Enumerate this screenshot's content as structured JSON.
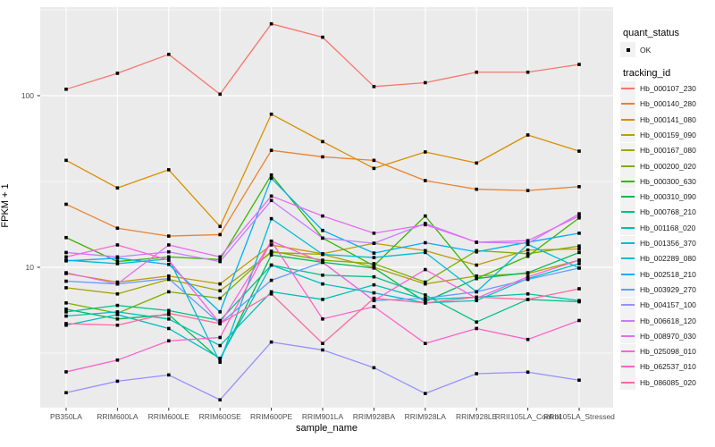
{
  "chart_data": {
    "type": "line",
    "title": "",
    "xlabel": "sample_name",
    "ylabel": "FPKM + 1",
    "y_scale": "log10",
    "y_axis_range": [
      1.5,
      330
    ],
    "y_ticks": [
      {
        "label": "100",
        "value": 100
      },
      {
        "label": "10",
        "value": 10
      }
    ],
    "y_minor_gridlines": [
      3.162,
      31.62,
      316.2
    ],
    "grid": true,
    "panel_bg": "#EBEBEB",
    "gridline_color": "#FFFFFF",
    "tick_label_color": "#4D4D4D",
    "point_shape": "black-square",
    "legend_position": "right",
    "categories": [
      "PB350LA",
      "RRIM600LA",
      "RRIM600LE",
      "RRIM600SE",
      "RRIM600PE",
      "RRIM901LA",
      "RRIM928BA",
      "RRIM928LA",
      "RRIM928LE",
      "RRII105LA_Control",
      "RRII105LA_Stressed"
    ],
    "series": [
      {
        "name": "Hb_000107_230",
        "color": "#F8766D",
        "values": [
          109,
          135,
          174,
          102,
          262,
          219,
          113,
          119,
          137,
          137,
          152
        ]
      },
      {
        "name": "Hb_000140_280",
        "color": "#EA8331",
        "values": [
          23.3,
          16.9,
          15.2,
          15.5,
          48,
          44,
          42,
          32,
          28.5,
          28,
          29.5
        ]
      },
      {
        "name": "Hb_000141_080",
        "color": "#D89000",
        "values": [
          42,
          29,
          37,
          17.3,
          78,
          54,
          37.7,
          47,
          40.5,
          59,
          47.5
        ]
      },
      {
        "name": "Hb_000159_090",
        "color": "#C09B00",
        "values": [
          9.2,
          8.2,
          8.9,
          8.0,
          13.5,
          12.0,
          13.8,
          12.5,
          10.3,
          12.6,
          12.8
        ]
      },
      {
        "name": "Hb_000167_080",
        "color": "#A3A500",
        "values": [
          7.6,
          7.0,
          8.5,
          7.3,
          12.2,
          11.9,
          10.0,
          8.0,
          8.9,
          9.2,
          11.0
        ]
      },
      {
        "name": "Hb_000200_020",
        "color": "#7CAE00",
        "values": [
          6.2,
          5.4,
          7.2,
          6.6,
          12.4,
          11.0,
          10.5,
          8.2,
          12.5,
          12.0,
          13.3
        ]
      },
      {
        "name": "Hb_000300_630",
        "color": "#39B600",
        "values": [
          14.9,
          10.8,
          11.5,
          11.1,
          34.5,
          14.8,
          10.2,
          19.9,
          8.6,
          11.6,
          19.4
        ]
      },
      {
        "name": "Hb_000310_090",
        "color": "#00BB4E",
        "values": [
          5.7,
          5.0,
          5.3,
          2.9,
          11.8,
          10.7,
          9.9,
          6.3,
          8.6,
          9.3,
          12.2
        ]
      },
      {
        "name": "Hb_000768_210",
        "color": "#00C087",
        "values": [
          5.5,
          6.0,
          5.6,
          4.9,
          10.3,
          9.0,
          8.8,
          6.9,
          4.8,
          6.5,
          6.3
        ]
      },
      {
        "name": "Hb_001168_020",
        "color": "#00C0B2",
        "values": [
          5.2,
          5.5,
          5.0,
          3.5,
          7.2,
          6.5,
          7.9,
          6.5,
          6.7,
          7.0,
          6.4
        ]
      },
      {
        "name": "Hb_001356_370",
        "color": "#00BFC4",
        "values": [
          4.6,
          5.3,
          4.4,
          2.95,
          10.3,
          8.0,
          7.1,
          6.2,
          6.4,
          8.6,
          10.5
        ]
      },
      {
        "name": "Hb_002289_080",
        "color": "#00BCD8",
        "values": [
          11.0,
          10.5,
          11.2,
          2.8,
          19.2,
          11.9,
          11.4,
          12.2,
          7.2,
          13.6,
          9.9
        ]
      },
      {
        "name": "Hb_002518_210",
        "color": "#00B0F6",
        "values": [
          10.9,
          11.3,
          10.4,
          5.5,
          33,
          16.4,
          12.1,
          13.9,
          12.3,
          14.0,
          15.8
        ]
      },
      {
        "name": "Hb_003929_270",
        "color": "#619CFF",
        "values": [
          8.3,
          8.0,
          8.6,
          4.7,
          8.4,
          10.7,
          6.4,
          6.6,
          7.2,
          8.5,
          9.9
        ]
      },
      {
        "name": "Hb_004157_100",
        "color": "#9590FF",
        "values": [
          1.86,
          2.17,
          2.36,
          1.69,
          3.67,
          3.3,
          2.6,
          1.84,
          2.4,
          2.45,
          2.2
        ]
      },
      {
        "name": "Hb_006618_120",
        "color": "#C77CFF",
        "values": [
          12.2,
          11.5,
          12.3,
          10.8,
          24.5,
          14.8,
          13.8,
          18.0,
          14.0,
          13.8,
          20.5
        ]
      },
      {
        "name": "Hb_008970_030",
        "color": "#E76BF3",
        "values": [
          9.3,
          8.0,
          13.5,
          11.5,
          26,
          19.9,
          15.8,
          17.7,
          14.0,
          14.3,
          19.9
        ]
      },
      {
        "name": "Hb_025098_010",
        "color": "#FA62DB",
        "values": [
          11.5,
          13.5,
          11.0,
          4.7,
          14.2,
          10.7,
          6.4,
          9.7,
          6.6,
          8.8,
          11.0
        ]
      },
      {
        "name": "Hb_062537_010",
        "color": "#FF61C9",
        "values": [
          2.46,
          2.88,
          3.73,
          3.9,
          14.2,
          5.0,
          5.9,
          3.6,
          4.4,
          3.8,
          4.9
        ]
      },
      {
        "name": "Hb_086085_020",
        "color": "#FF68A1",
        "values": [
          4.7,
          4.6,
          5.4,
          4.7,
          7.0,
          3.6,
          6.6,
          6.2,
          6.7,
          6.5,
          7.5
        ]
      }
    ]
  },
  "legend": {
    "quant_status": {
      "title": "quant_status",
      "items": [
        {
          "label": "OK",
          "marker": "black-square"
        }
      ]
    },
    "tracking_id": {
      "title": "tracking_id"
    }
  }
}
